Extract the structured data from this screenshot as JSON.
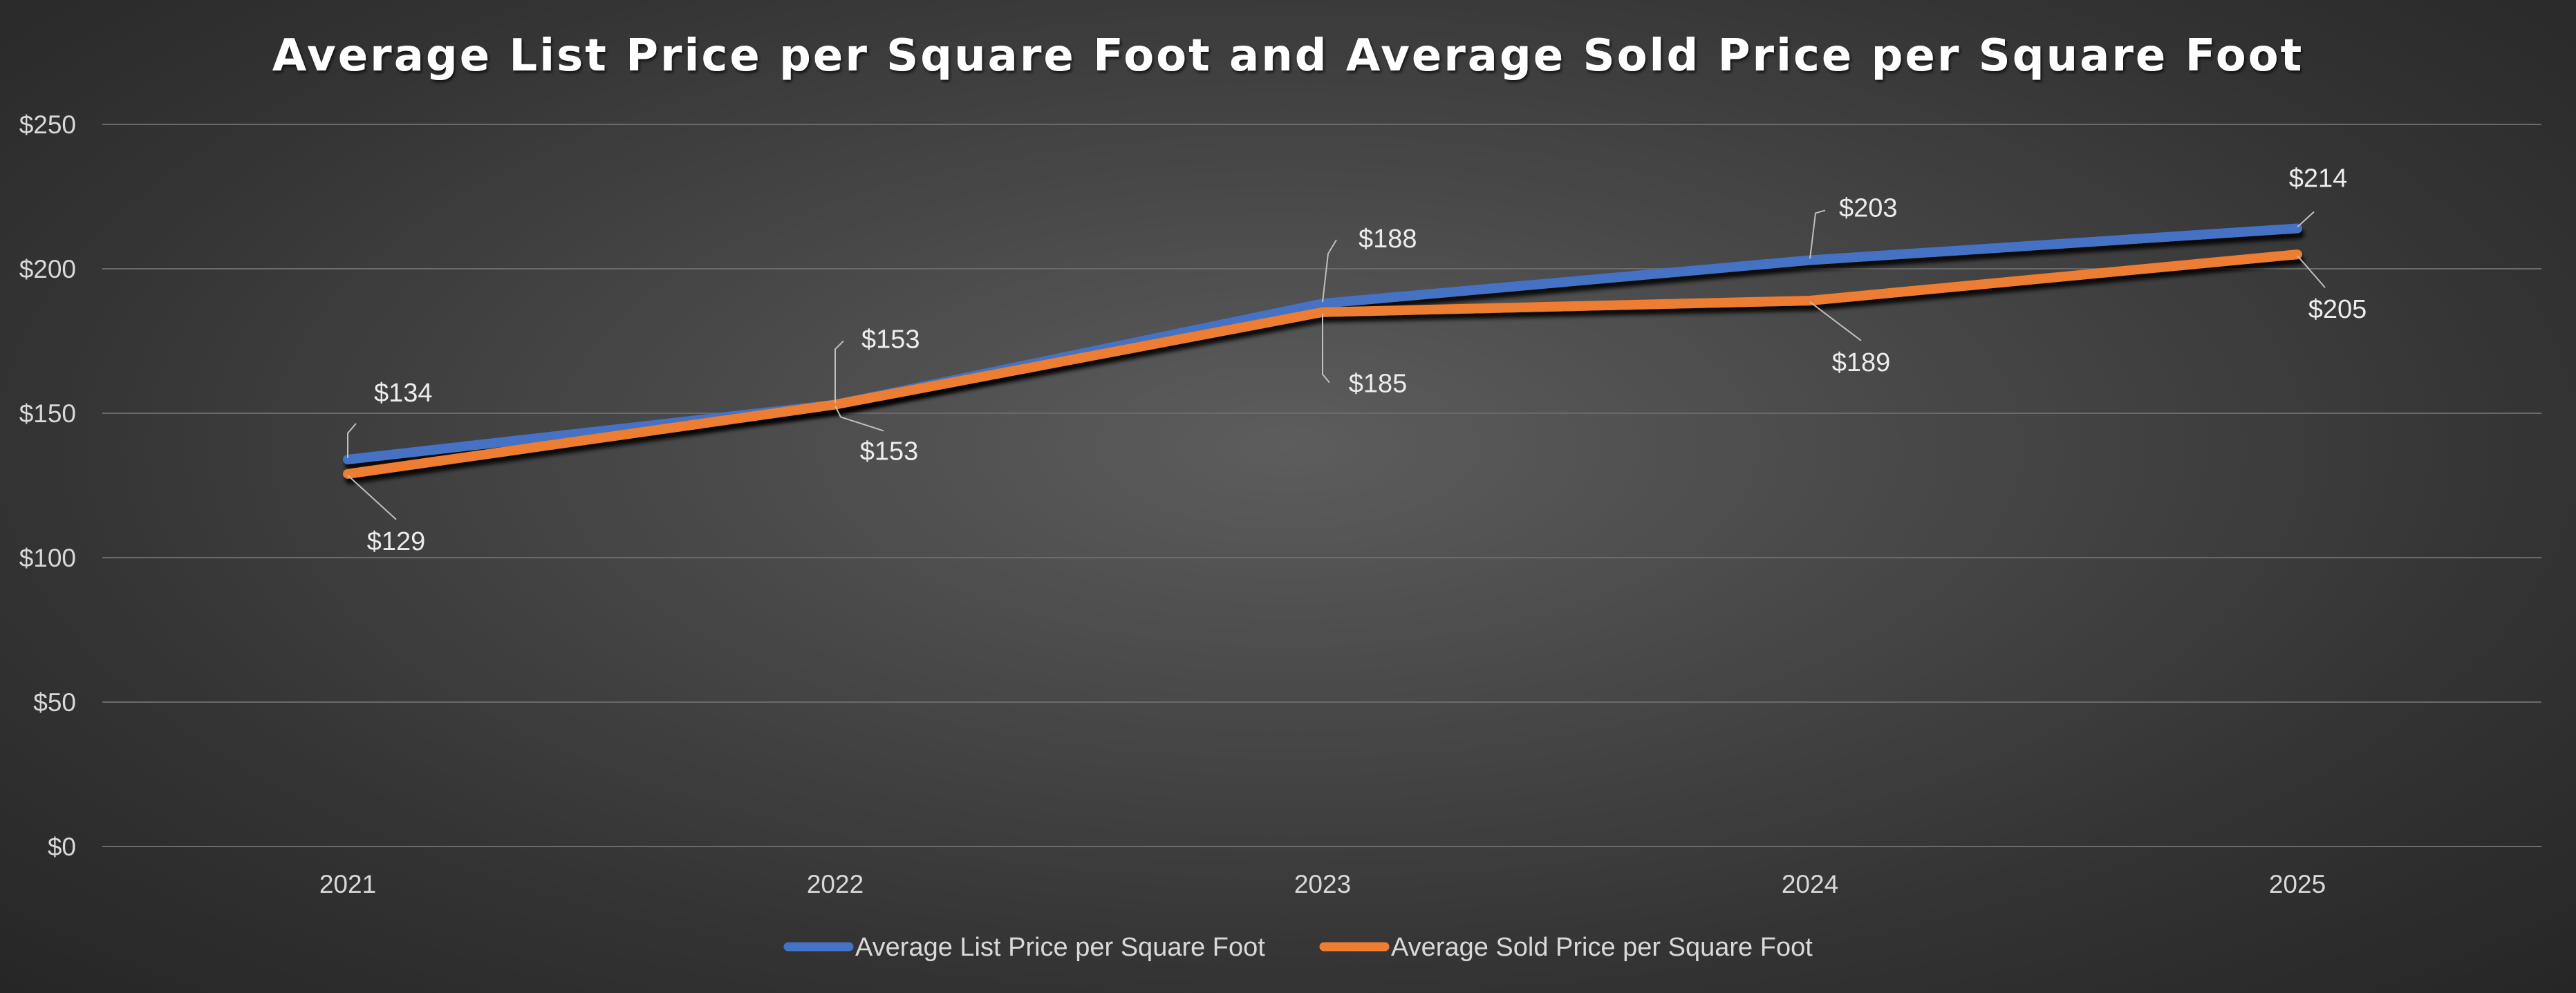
{
  "chart_data": {
    "type": "line",
    "title": "Average List Price per Square Foot and Average Sold Price per Square Foot",
    "categories": [
      "2021",
      "2022",
      "2023",
      "2024",
      "2025"
    ],
    "ylim": [
      0,
      250
    ],
    "y_ticks": [
      0,
      50,
      100,
      150,
      200,
      250
    ],
    "y_tick_labels": [
      "$0",
      "$50",
      "$100",
      "$150",
      "$200",
      "$250"
    ],
    "grid": true,
    "legend_position": "bottom",
    "series": [
      {
        "name": "Average List Price per Square Foot",
        "color": "#4472C4",
        "values": [
          134,
          153,
          188,
          203,
          214
        ],
        "labels": [
          "$134",
          "$153",
          "$188",
          "$203",
          "$214"
        ]
      },
      {
        "name": "Average Sold Price per Square Foot",
        "color": "#ED7D31",
        "values": [
          129,
          153,
          185,
          189,
          205
        ],
        "labels": [
          "$129",
          "$153",
          "$185",
          "$189",
          "$205"
        ]
      }
    ]
  }
}
